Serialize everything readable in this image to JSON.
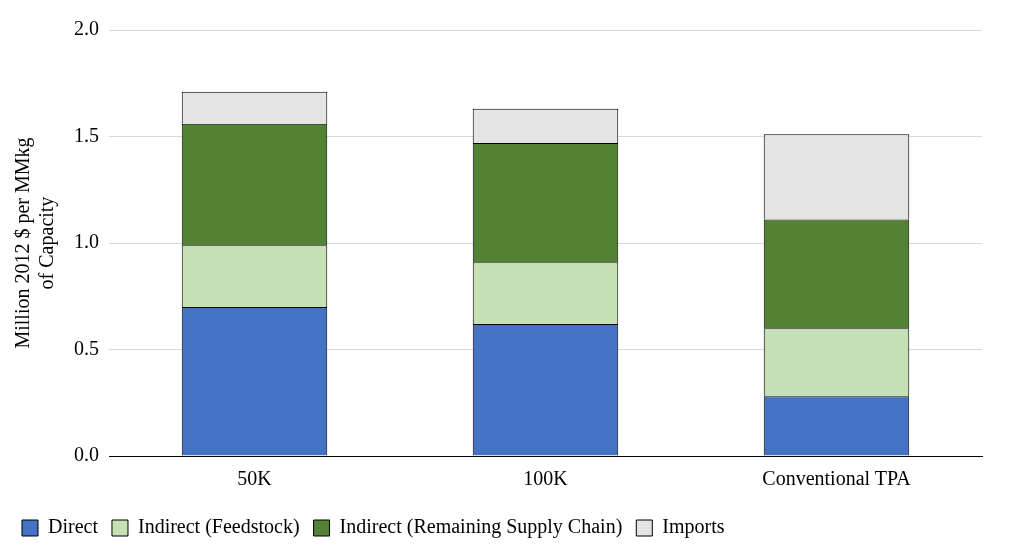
{
  "chart_data": {
    "type": "bar",
    "stacked": true,
    "ylabel": "Million 2012 $ per MMkg of Capacity",
    "categories": [
      "50K",
      "100K",
      "Conventional TPA"
    ],
    "series": [
      {
        "name": "Direct",
        "color": "#4472c4",
        "values": [
          0.7,
          0.62,
          0.28
        ]
      },
      {
        "name": "Indirect (Feedstock)",
        "color": "#c5e0b4",
        "values": [
          0.29,
          0.29,
          0.32
        ]
      },
      {
        "name": "Indirect (Remaining Supply Chain)",
        "color": "#548235",
        "values": [
          0.57,
          0.56,
          0.51
        ]
      },
      {
        "name": "Imports",
        "color": "#e4e4e4",
        "values": [
          0.15,
          0.16,
          0.4
        ]
      }
    ],
    "ylim": [
      0,
      2
    ],
    "yticks": [
      {
        "value": 0,
        "label": "0.0"
      },
      {
        "value": 0.5,
        "label": "0.5"
      },
      {
        "value": 1,
        "label": "1.0"
      },
      {
        "value": 1.5,
        "label": "1.5"
      },
      {
        "value": 2,
        "label": "2.0"
      }
    ],
    "grid": "y",
    "legend": "bottom"
  }
}
